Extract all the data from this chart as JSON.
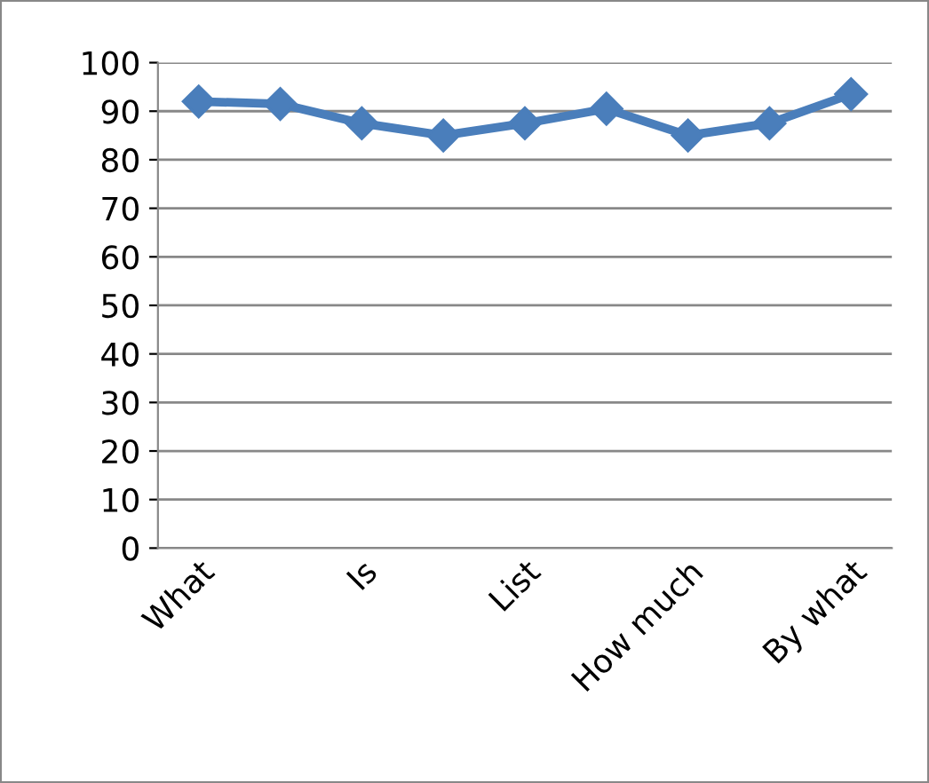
{
  "chart_data": {
    "type": "line",
    "categories": [
      "What",
      null,
      "Is",
      null,
      "List",
      null,
      "How much",
      null,
      "By what"
    ],
    "series": [
      {
        "color": "#4a7ebb",
        "values": [
          92,
          91.5,
          87.5,
          85,
          87.5,
          90.5,
          85,
          87.5,
          93.5
        ]
      }
    ],
    "ylim": [
      0,
      100
    ],
    "yticks": [
      0,
      10,
      20,
      30,
      40,
      50,
      60,
      70,
      80,
      90,
      100
    ],
    "grid": "y",
    "marker": "diamond",
    "line_style": "solid",
    "legend": false
  }
}
